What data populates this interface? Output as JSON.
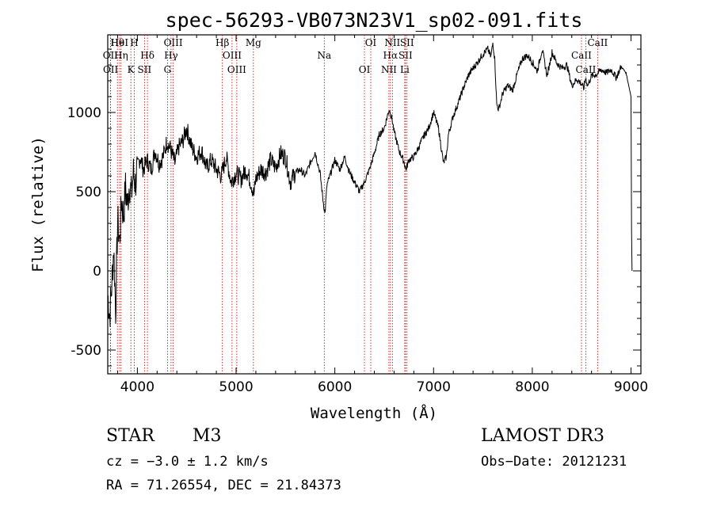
{
  "chart_data": {
    "type": "line",
    "title": "spec-56293-VB073N23V1_sp02-091.fits",
    "xlabel": "Wavelength (Å)",
    "ylabel": "Flux (relative)",
    "xlim": [
      3700,
      9100
    ],
    "ylim": [
      -650,
      1490
    ],
    "x_ticks": [
      4000,
      5000,
      6000,
      7000,
      8000,
      9000
    ],
    "y_ticks": [
      -500,
      0,
      500,
      1000
    ],
    "series": [
      {
        "name": "flux",
        "x": [
          3700,
          3720,
          3740,
          3760,
          3780,
          3800,
          3820,
          3840,
          3860,
          3880,
          3900,
          3920,
          3940,
          3960,
          3980,
          4000,
          4030,
          4060,
          4100,
          4140,
          4180,
          4220,
          4260,
          4300,
          4340,
          4380,
          4420,
          4460,
          4500,
          4550,
          4600,
          4650,
          4700,
          4750,
          4800,
          4850,
          4900,
          4950,
          5000,
          5050,
          5100,
          5150,
          5180,
          5200,
          5250,
          5300,
          5350,
          5400,
          5450,
          5500,
          5550,
          5600,
          5650,
          5700,
          5750,
          5800,
          5850,
          5880,
          5900,
          5920,
          5950,
          6000,
          6050,
          6100,
          6150,
          6200,
          6250,
          6300,
          6350,
          6400,
          6450,
          6500,
          6550,
          6580,
          6600,
          6650,
          6700,
          6720,
          6750,
          6800,
          6850,
          6900,
          6950,
          7000,
          7050,
          7100,
          7130,
          7150,
          7200,
          7250,
          7300,
          7350,
          7400,
          7450,
          7500,
          7550,
          7580,
          7600,
          7620,
          7640,
          7660,
          7700,
          7750,
          7800,
          7850,
          7900,
          7950,
          8000,
          8050,
          8100,
          8150,
          8200,
          8250,
          8300,
          8350,
          8400,
          8450,
          8500,
          8520,
          8540,
          8560,
          8600,
          8650,
          8700,
          8750,
          8800,
          8850,
          8900,
          8950,
          9000,
          9005,
          9010
        ],
        "y": [
          -150,
          -280,
          -100,
          150,
          -250,
          320,
          180,
          450,
          350,
          520,
          420,
          560,
          480,
          620,
          550,
          650,
          720,
          640,
          700,
          640,
          760,
          680,
          720,
          820,
          760,
          680,
          780,
          820,
          900,
          780,
          720,
          760,
          650,
          700,
          640,
          600,
          720,
          560,
          620,
          580,
          640,
          560,
          480,
          580,
          640,
          620,
          700,
          650,
          740,
          720,
          560,
          620,
          640,
          600,
          680,
          750,
          620,
          450,
          360,
          540,
          600,
          700,
          640,
          720,
          620,
          560,
          500,
          560,
          640,
          740,
          860,
          900,
          1020,
          960,
          880,
          760,
          690,
          640,
          700,
          720,
          780,
          850,
          900,
          1000,
          900,
          680,
          720,
          860,
          980,
          1060,
          1150,
          1230,
          1280,
          1320,
          1370,
          1400,
          1350,
          1440,
          1340,
          1050,
          1020,
          1120,
          1170,
          1140,
          1250,
          1340,
          1360,
          1320,
          1260,
          1400,
          1230,
          1380,
          1310,
          1280,
          1300,
          1170,
          1210,
          1180,
          1150,
          1220,
          1170,
          1230,
          1240,
          1270,
          1250,
          1270,
          1220,
          1290,
          1250,
          1100,
          250,
          0
        ]
      }
    ],
    "emission_lines": [
      {
        "name": "Hθ",
        "x": 3798
      },
      {
        "name": "OII",
        "x": 3727
      },
      {
        "name": "OII",
        "x": 3729
      },
      {
        "name": "HeI",
        "x": 3820
      },
      {
        "name": "Hη",
        "x": 3835
      },
      {
        "name": "K",
        "x": 3934
      },
      {
        "name": "H",
        "x": 3969
      },
      {
        "name": "Hδ",
        "x": 4102
      },
      {
        "name": "SII",
        "x": 4072
      },
      {
        "name": "OIII",
        "x": 4363
      },
      {
        "name": "Hγ",
        "x": 4341
      },
      {
        "name": "G",
        "x": 4305
      },
      {
        "name": "Hβ",
        "x": 4861
      },
      {
        "name": "OIII",
        "x": 4959
      },
      {
        "name": "OIII",
        "x": 5007
      },
      {
        "name": "Mg",
        "x": 5175
      },
      {
        "name": "Na",
        "x": 5893
      },
      {
        "name": "OI",
        "x": 6300
      },
      {
        "name": "OI",
        "x": 6364
      },
      {
        "name": "Hα",
        "x": 6563
      },
      {
        "name": "NII",
        "x": 6548
      },
      {
        "name": "NII",
        "x": 6583
      },
      {
        "name": "SII",
        "x": 6716
      },
      {
        "name": "Li",
        "x": 6708
      },
      {
        "name": "SII",
        "x": 6731
      },
      {
        "name": "CaII",
        "x": 8498
      },
      {
        "name": "CaII",
        "x": 8542
      },
      {
        "name": "CaII",
        "x": 8662
      }
    ]
  },
  "footer": {
    "object_class": "STAR",
    "subclass": "M3",
    "survey": "LAMOST DR3",
    "cz": "cz = −3.0 ± 1.2 km/s",
    "obs_date": "Obs−Date: 20121231",
    "coords": "RA =  71.26554, DEC =  21.84373"
  }
}
